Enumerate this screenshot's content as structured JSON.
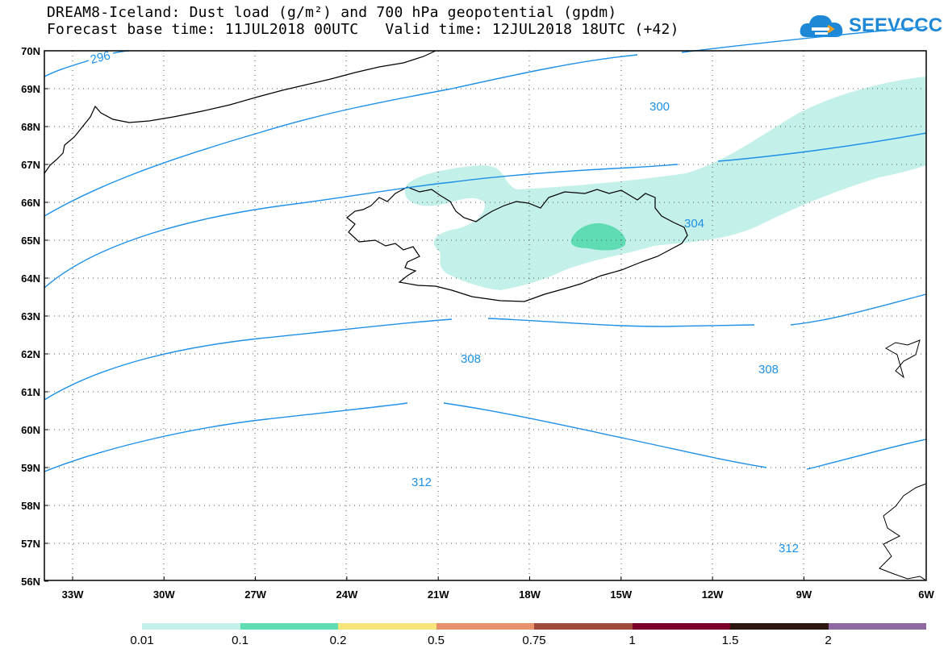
{
  "title": {
    "line1": "DREAM8-Iceland: Dust load (g/m²) and 700 hPa geopotential (gpdm)",
    "line2": "Forecast base time: 11JUL2018 00UTC   Valid time: 12JUL2018 18UTC (+42)"
  },
  "logo": {
    "text": "SEEVCCC",
    "icon": "cloud-icon",
    "color": "#1e88d6"
  },
  "map": {
    "lat_labels": [
      "70N",
      "69N",
      "68N",
      "67N",
      "66N",
      "65N",
      "64N",
      "63N",
      "62N",
      "61N",
      "60N",
      "59N",
      "58N",
      "57N",
      "56N"
    ],
    "lon_labels": [
      "33W",
      "30W",
      "27W",
      "24W",
      "21W",
      "18W",
      "15W",
      "12W",
      "9W",
      "6W"
    ],
    "contour_color": "#1e90e8",
    "contour_labels": [
      "296",
      "300",
      "304",
      "308",
      "308",
      "312",
      "312"
    ]
  },
  "colorbar": {
    "labels": [
      "0.01",
      "0.1",
      "0.2",
      "0.5",
      "0.75",
      "1",
      "1.5",
      "2"
    ],
    "colors": [
      "#c4f0ea",
      "#5fdcb4",
      "#f5e57a",
      "#e8906a",
      "#a04a3e",
      "#7a0028",
      "#2c1810",
      "#8e6aa0"
    ]
  }
}
